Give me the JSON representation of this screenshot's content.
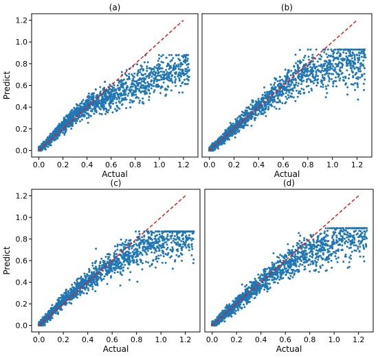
{
  "chart_data": [
    {
      "type": "scatter",
      "title": "(a)",
      "xlabel": "Actual",
      "ylabel": "Predict",
      "xticks": [
        "0.0",
        "0.2",
        "0.4",
        "0.6",
        "0.8",
        "1.0",
        "1.2"
      ],
      "yticks": [
        "0.0",
        "0.2",
        "0.4",
        "0.6",
        "0.8",
        "1.0",
        "1.2"
      ],
      "xlim": [
        -0.06,
        1.32
      ],
      "ylim": [
        -0.06,
        1.26
      ],
      "grid": false,
      "legend": "none",
      "colors": {
        "points": "#1f77b4",
        "reference": "#e31a1c"
      },
      "reference_line": {
        "x": [
          0,
          1.2
        ],
        "y": [
          0,
          1.2
        ],
        "style": "dashed"
      },
      "point_cloud": {
        "n": 1800,
        "x_range": [
          0,
          1.25
        ],
        "y_range": [
          0,
          0.88
        ],
        "trend": [
          [
            0.0,
            0.0
          ],
          [
            0.2,
            0.22
          ],
          [
            0.35,
            0.38
          ],
          [
            0.5,
            0.46
          ],
          [
            0.8,
            0.6
          ],
          [
            1.0,
            0.7
          ],
          [
            1.25,
            0.76
          ]
        ]
      }
    },
    {
      "type": "scatter",
      "title": "(b)",
      "xlabel": "Actual",
      "ylabel": "",
      "xticks": [
        "0.0",
        "0.2",
        "0.4",
        "0.6",
        "0.8",
        "1.0",
        "1.2"
      ],
      "yticks": [],
      "xlim": [
        -0.06,
        1.32
      ],
      "ylim": [
        -0.06,
        1.26
      ],
      "grid": false,
      "legend": "none",
      "colors": {
        "points": "#1f77b4",
        "reference": "#e31a1c"
      },
      "reference_line": {
        "x": [
          0,
          1.2
        ],
        "y": [
          0,
          1.2
        ],
        "style": "dashed"
      },
      "point_cloud": {
        "n": 1800,
        "x_range": [
          0,
          1.27
        ],
        "y_range": [
          0,
          0.93
        ],
        "trend": [
          [
            0.0,
            0.0
          ],
          [
            0.3,
            0.3
          ],
          [
            0.5,
            0.5
          ],
          [
            0.7,
            0.66
          ],
          [
            0.9,
            0.75
          ],
          [
            1.1,
            0.8
          ],
          [
            1.27,
            0.82
          ]
        ]
      }
    },
    {
      "type": "scatter",
      "title": "(c)",
      "xlabel": "Actual",
      "ylabel": "Predict",
      "xticks": [
        "0.0",
        "0.2",
        "0.4",
        "0.6",
        "0.8",
        "1.0",
        "1.2"
      ],
      "yticks": [
        "0.0",
        "0.2",
        "0.4",
        "0.6",
        "0.8",
        "1.0",
        "1.2"
      ],
      "xlim": [
        -0.06,
        1.32
      ],
      "ylim": [
        -0.06,
        1.26
      ],
      "grid": false,
      "legend": "none",
      "colors": {
        "points": "#1f77b4",
        "reference": "#e31a1c"
      },
      "reference_line": {
        "x": [
          0,
          1.2
        ],
        "y": [
          0,
          1.2
        ],
        "style": "dashed"
      },
      "point_cloud": {
        "n": 1800,
        "x_range": [
          0,
          1.27
        ],
        "y_range": [
          0,
          0.87
        ],
        "trend": [
          [
            0.0,
            0.0
          ],
          [
            0.2,
            0.23
          ],
          [
            0.4,
            0.42
          ],
          [
            0.6,
            0.57
          ],
          [
            0.8,
            0.7
          ],
          [
            1.0,
            0.8
          ],
          [
            1.27,
            0.82
          ]
        ]
      }
    },
    {
      "type": "scatter",
      "title": "(d)",
      "xlabel": "Actual",
      "ylabel": "",
      "xticks": [
        "0.0",
        "0.2",
        "0.4",
        "0.6",
        "0.8",
        "1.0",
        "1.2"
      ],
      "yticks": [],
      "xlim": [
        -0.06,
        1.32
      ],
      "ylim": [
        -0.06,
        1.26
      ],
      "grid": false,
      "legend": "none",
      "colors": {
        "points": "#1f77b4",
        "reference": "#e31a1c"
      },
      "reference_line": {
        "x": [
          0,
          1.2
        ],
        "y": [
          0,
          1.2
        ],
        "style": "dashed"
      },
      "point_cloud": {
        "n": 1800,
        "x_range": [
          0,
          1.27
        ],
        "y_range": [
          0,
          0.9
        ],
        "trend": [
          [
            0.0,
            0.0
          ],
          [
            0.3,
            0.3
          ],
          [
            0.5,
            0.48
          ],
          [
            0.7,
            0.63
          ],
          [
            0.9,
            0.74
          ],
          [
            1.1,
            0.83
          ],
          [
            1.27,
            0.86
          ]
        ]
      }
    }
  ]
}
